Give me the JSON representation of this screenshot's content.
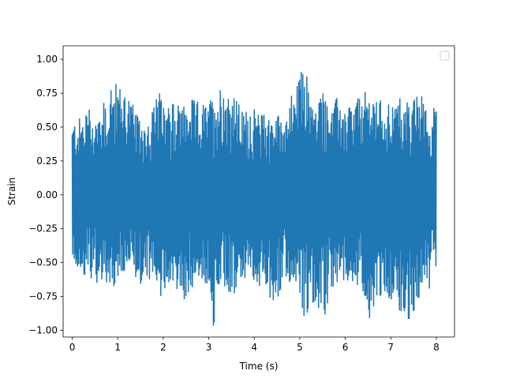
{
  "chart_data": {
    "type": "line",
    "title": "",
    "xlabel": "Time (s)",
    "ylabel": "Strain",
    "xlim": [
      -0.2,
      8.4
    ],
    "ylim": [
      -1.05,
      1.1
    ],
    "x_ticks": [
      0,
      1,
      2,
      3,
      4,
      5,
      6,
      7,
      8
    ],
    "x_tick_labels": [
      "0",
      "1",
      "2",
      "3",
      "4",
      "5",
      "6",
      "7",
      "8"
    ],
    "y_ticks": [
      -1.0,
      -0.75,
      -0.5,
      -0.25,
      0.0,
      0.25,
      0.5,
      0.75,
      1.0
    ],
    "y_tick_labels": [
      "−1.00",
      "−0.75",
      "−0.50",
      "−0.25",
      "0.00",
      "0.25",
      "0.50",
      "0.75",
      "1.00"
    ],
    "grid": false,
    "legend": {
      "placement": "upper-right",
      "entries": []
    },
    "series": [
      {
        "color": "#1f77b4",
        "sampling": {
          "t_start": 0,
          "t_end": 8,
          "n_points": 900
        },
        "envelope_max": [
          [
            0.0,
            0.52
          ],
          [
            0.07,
            0.56
          ],
          [
            0.13,
            0.57
          ],
          [
            0.28,
            0.57
          ],
          [
            0.32,
            0.69
          ],
          [
            0.49,
            0.57
          ],
          [
            0.62,
            0.63
          ],
          [
            0.77,
            0.73
          ],
          [
            0.95,
            0.82
          ],
          [
            1.2,
            0.79
          ],
          [
            1.45,
            0.57
          ],
          [
            1.62,
            0.55
          ],
          [
            1.75,
            0.63
          ],
          [
            1.92,
            0.76
          ],
          [
            2.03,
            0.61
          ],
          [
            2.2,
            0.67
          ],
          [
            2.45,
            0.65
          ],
          [
            2.65,
            0.71
          ],
          [
            2.78,
            0.69
          ],
          [
            3.0,
            0.67
          ],
          [
            3.12,
            0.75
          ],
          [
            3.3,
            0.83
          ],
          [
            3.5,
            0.77
          ],
          [
            3.75,
            0.62
          ],
          [
            3.95,
            0.65
          ],
          [
            4.2,
            0.59
          ],
          [
            4.55,
            0.6
          ],
          [
            4.78,
            0.64
          ],
          [
            4.83,
            0.81
          ],
          [
            4.92,
            0.79
          ],
          [
            5.1,
            1.0
          ],
          [
            5.3,
            0.65
          ],
          [
            5.5,
            0.76
          ],
          [
            5.65,
            0.6
          ],
          [
            5.85,
            0.75
          ],
          [
            6.0,
            0.6
          ],
          [
            6.2,
            0.69
          ],
          [
            6.5,
            0.78
          ],
          [
            6.7,
            0.69
          ],
          [
            6.85,
            0.75
          ],
          [
            7.05,
            0.64
          ],
          [
            7.2,
            0.73
          ],
          [
            7.4,
            0.67
          ],
          [
            7.65,
            0.76
          ],
          [
            7.85,
            0.53
          ],
          [
            8.0,
            0.73
          ]
        ],
        "envelope_min": [
          [
            0.0,
            -0.52
          ],
          [
            0.1,
            -0.54
          ],
          [
            0.2,
            -0.58
          ],
          [
            0.35,
            -0.6
          ],
          [
            0.58,
            -0.66
          ],
          [
            0.7,
            -0.61
          ],
          [
            0.82,
            -0.73
          ],
          [
            1.0,
            -0.66
          ],
          [
            1.15,
            -0.6
          ],
          [
            1.3,
            -0.56
          ],
          [
            1.5,
            -0.66
          ],
          [
            1.62,
            -0.62
          ],
          [
            1.9,
            -0.81
          ],
          [
            2.05,
            -0.69
          ],
          [
            2.2,
            -0.62
          ],
          [
            2.42,
            -0.84
          ],
          [
            2.6,
            -0.7
          ],
          [
            2.8,
            -0.61
          ],
          [
            3.05,
            -0.73
          ],
          [
            3.1,
            -0.97
          ],
          [
            3.3,
            -0.7
          ],
          [
            3.6,
            -0.73
          ],
          [
            3.75,
            -0.61
          ],
          [
            4.0,
            -0.63
          ],
          [
            4.4,
            -0.81
          ],
          [
            4.65,
            -0.69
          ],
          [
            4.9,
            -0.63
          ],
          [
            5.0,
            -0.74
          ],
          [
            5.08,
            -0.92
          ],
          [
            5.3,
            -0.79
          ],
          [
            5.55,
            -0.89
          ],
          [
            5.75,
            -0.66
          ],
          [
            6.0,
            -0.63
          ],
          [
            6.2,
            -0.64
          ],
          [
            6.4,
            -0.72
          ],
          [
            6.48,
            -0.96
          ],
          [
            6.7,
            -0.75
          ],
          [
            6.85,
            -0.74
          ],
          [
            7.05,
            -0.78
          ],
          [
            7.3,
            -0.91
          ],
          [
            7.45,
            -0.92
          ],
          [
            7.65,
            -0.73
          ],
          [
            7.85,
            -0.74
          ],
          [
            8.0,
            -0.52
          ]
        ]
      }
    ]
  }
}
